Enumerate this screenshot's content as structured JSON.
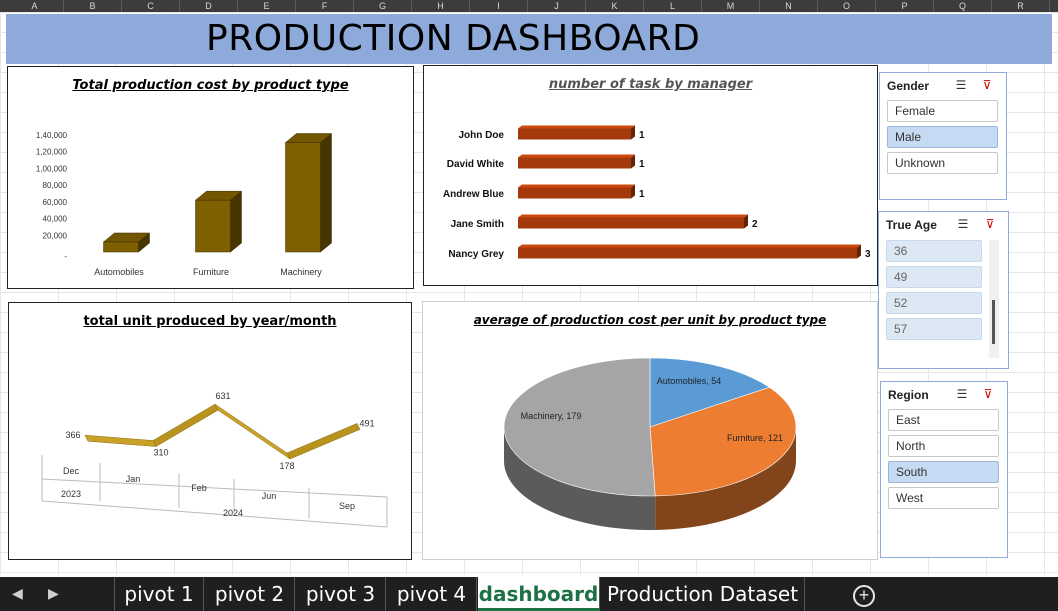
{
  "columns": [
    "A",
    "B",
    "C",
    "D",
    "E",
    "F",
    "G",
    "H",
    "I",
    "J",
    "K",
    "L",
    "M",
    "N",
    "O",
    "P",
    "Q",
    "R"
  ],
  "dashboard_title": "PRODUCTION DASHBOARD",
  "charts": {
    "cost_by_type": {
      "title": "Total production cost by product type",
      "chart_data": {
        "type": "bar",
        "categories": [
          "Automobiles",
          "Furniture",
          "Machinery"
        ],
        "values": [
          12000,
          62000,
          131000
        ],
        "yticks": [
          "1,40,000",
          "1,20,000",
          "1,00,000",
          "80,000",
          "60,000",
          "40,000",
          "20,000",
          "-"
        ],
        "ylim": [
          0,
          140000
        ],
        "color": "#7f6000"
      }
    },
    "tasks_by_manager": {
      "title": "number of task by manager",
      "chart_data": {
        "type": "bar",
        "orientation": "horizontal",
        "categories": [
          "John Doe",
          "David White",
          "Andrew Blue",
          "Jane Smith",
          "Nancy Grey"
        ],
        "values": [
          1,
          1,
          1,
          2,
          3
        ],
        "labels": [
          "1",
          "1",
          "1",
          "2",
          "3"
        ],
        "color": "#a43a0b"
      }
    },
    "units_by_month": {
      "title": "total unit produced by year/month",
      "chart_data": {
        "type": "line",
        "months": [
          "Dec",
          "Jan",
          "Feb",
          "Jun",
          "Sep"
        ],
        "years": [
          "2023",
          "2024"
        ],
        "values": [
          366,
          310,
          631,
          178,
          491
        ],
        "labels": [
          "366",
          "310",
          "631",
          "178",
          "491"
        ],
        "color": "#c9a227"
      }
    },
    "avg_cost_per_unit": {
      "title": "average of production cost per unit by product type",
      "chart_data": {
        "type": "pie",
        "slices": [
          {
            "label": "Automobiles, 54",
            "value": 54,
            "color": "#5b9bd5"
          },
          {
            "label": "Furniture, 121",
            "value": 121,
            "color": "#ed7d31"
          },
          {
            "label": "Machinery, 179",
            "value": 179,
            "color": "#a5a5a5"
          }
        ]
      }
    }
  },
  "slicers": {
    "gender": {
      "header": "Gender",
      "items": [
        "Female",
        "Male",
        "Unknown"
      ],
      "selected": "Male"
    },
    "age": {
      "header": "True Age",
      "items": [
        "36",
        "49",
        "52",
        "57"
      ]
    },
    "region": {
      "header": "Region",
      "items": [
        "East",
        "North",
        "South",
        "West"
      ],
      "selected": "South"
    }
  },
  "tabs": [
    "pivot 1",
    "pivot 2",
    "pivot 3",
    "pivot 4",
    "dashboard",
    "Production Dataset"
  ],
  "active_tab": "dashboard"
}
